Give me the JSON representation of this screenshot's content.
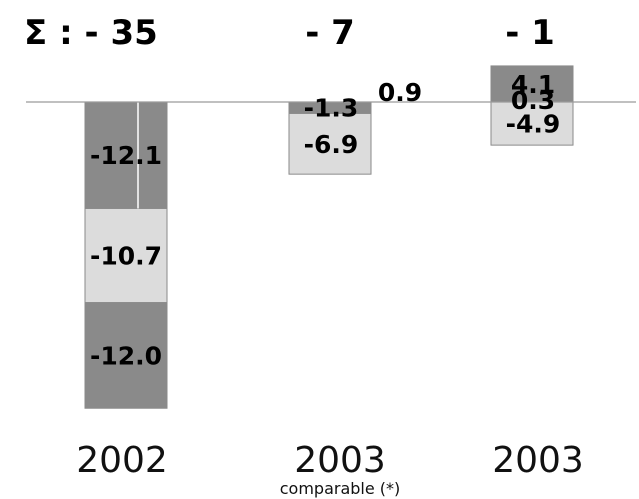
{
  "chart_data": {
    "type": "bar",
    "stacked": true,
    "categories": [
      "2002",
      "2003",
      "2003"
    ],
    "category_sublabels": [
      "",
      "comparable (*)",
      ""
    ],
    "totals": [
      "Σ : - 35",
      "- 7",
      "- 1"
    ],
    "series": [
      {
        "values": [
          -12.1,
          -1.3,
          4.1
        ],
        "labels": [
          "-12.1",
          "-1.3",
          "4.1"
        ]
      },
      {
        "values": [
          -10.7,
          -6.9,
          0.3
        ],
        "labels": [
          "-10.7",
          "-6.9",
          "0.3"
        ]
      },
      {
        "values": [
          -12.0,
          0.9,
          -4.9
        ],
        "labels": [
          "-12.0",
          "0.9",
          "-4.9"
        ]
      }
    ],
    "ylim": [
      -35,
      4.1
    ],
    "grid": false,
    "legend": "none",
    "colors": {
      "dark": "#8a8a8a",
      "light": "#dcdcdc",
      "bar_outline": "#8a8a8a",
      "baseline": "#9a9a9a"
    }
  }
}
